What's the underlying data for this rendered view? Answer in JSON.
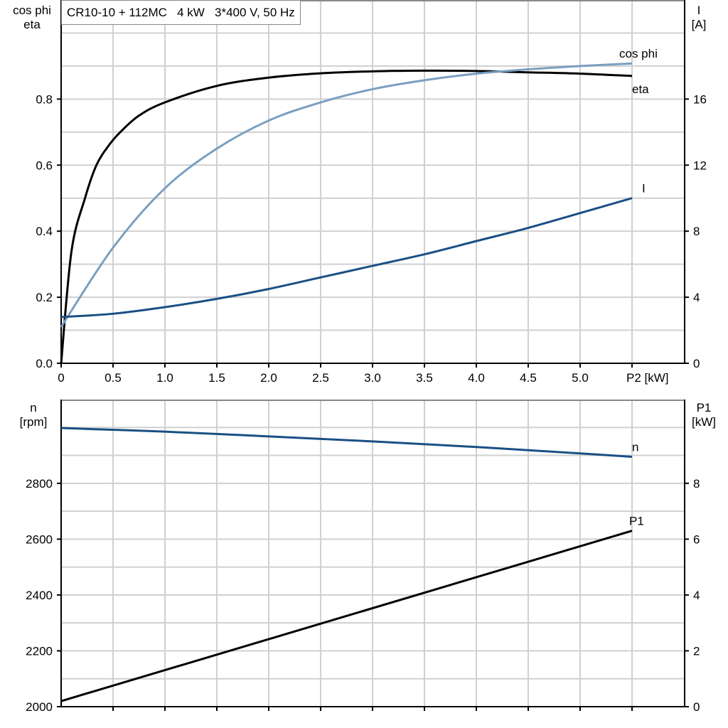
{
  "chart_data": [
    {
      "type": "line",
      "title": "CR10-10 + 112MC   4 kW   3*400 V, 50 Hz",
      "xlabel": "P2 [kW]",
      "xlim": [
        0,
        5.75
      ],
      "x_ticks": [
        "0",
        "0.5",
        "1.0",
        "1.5",
        "2.0",
        "2.5",
        "3.0",
        "3.5",
        "4.0",
        "4.5",
        "5.0"
      ],
      "ylabel_left": [
        "cos phi",
        "eta"
      ],
      "ylim_left": [
        0,
        1.1
      ],
      "y_ticks_left": [
        "0.0",
        "0.2",
        "0.4",
        "0.6",
        "0.8"
      ],
      "ylabel_right": [
        "I",
        "[A]"
      ],
      "ylim_right": [
        0,
        22
      ],
      "y_ticks_right": [
        "0",
        "4",
        "8",
        "12",
        "16"
      ],
      "grid": true,
      "series": [
        {
          "name": "eta",
          "axis": "left",
          "color": "#000000",
          "x": [
            0,
            0.1,
            0.23,
            0.34,
            0.46,
            0.57,
            0.75,
            1.0,
            1.5,
            2.0,
            2.5,
            3.0,
            3.5,
            4.0,
            4.5,
            5.0,
            5.5
          ],
          "y": [
            0,
            0.34,
            0.5,
            0.6,
            0.66,
            0.7,
            0.75,
            0.79,
            0.84,
            0.865,
            0.878,
            0.884,
            0.886,
            0.885,
            0.881,
            0.877,
            0.87
          ]
        },
        {
          "name": "cos phi",
          "axis": "left",
          "color": "#7a9fc0",
          "x": [
            0,
            0.5,
            1.0,
            1.5,
            2.0,
            2.5,
            3.0,
            3.5,
            4.0,
            4.5,
            5.0,
            5.5
          ],
          "y": [
            0.11,
            0.35,
            0.53,
            0.65,
            0.735,
            0.79,
            0.83,
            0.857,
            0.877,
            0.89,
            0.9,
            0.908
          ]
        },
        {
          "name": "I",
          "axis": "right",
          "color": "#1a4f84",
          "x": [
            0,
            0.5,
            1.0,
            1.5,
            2.0,
            2.5,
            3.0,
            3.5,
            4.0,
            4.5,
            5.0,
            5.5
          ],
          "y": [
            2.8,
            3.0,
            3.4,
            3.9,
            4.5,
            5.2,
            5.9,
            6.6,
            7.4,
            8.2,
            9.1,
            10.0
          ]
        }
      ]
    },
    {
      "type": "line",
      "xlim": [
        0,
        5.75
      ],
      "ylabel_left": [
        "n",
        "[rpm]"
      ],
      "ylim_left": [
        2000,
        3100
      ],
      "y_ticks_left": [
        "2000",
        "2200",
        "2400",
        "2600",
        "2800"
      ],
      "ylabel_right": [
        "P1",
        "[kW]"
      ],
      "ylim_right": [
        0,
        11
      ],
      "y_ticks_right": [
        "0",
        "2",
        "4",
        "6",
        "8"
      ],
      "grid": true,
      "series": [
        {
          "name": "n",
          "axis": "left",
          "color": "#1a4f84",
          "x": [
            0,
            1,
            2,
            3,
            4,
            5,
            5.5
          ],
          "y": [
            2998,
            2985,
            2968,
            2950,
            2930,
            2907,
            2895
          ]
        },
        {
          "name": "P1",
          "axis": "right",
          "color": "#000000",
          "x": [
            0,
            5.5
          ],
          "y": [
            0.2,
            6.3
          ]
        }
      ]
    }
  ]
}
